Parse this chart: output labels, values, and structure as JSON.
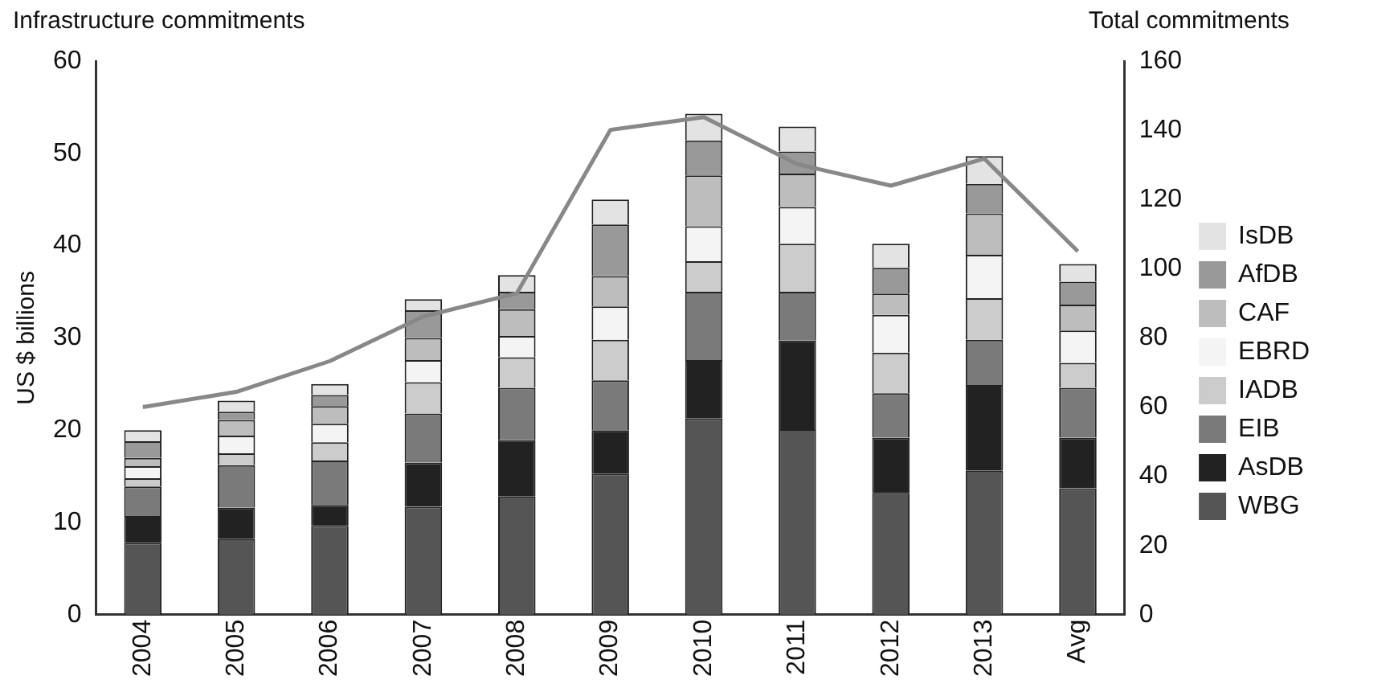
{
  "chart_data": {
    "type": "bar",
    "title": "Infrastructure commitments",
    "ylabel": "US $ billions",
    "y2label": "Total commitments",
    "categories": [
      "2004",
      "2005",
      "2006",
      "2007",
      "2008",
      "2009",
      "2010",
      "2011",
      "2012",
      "2013",
      "Avg"
    ],
    "stacked": true,
    "series": [
      {
        "name": "WBG",
        "color": "#555555",
        "values": [
          7.8,
          8.2,
          9.6,
          11.7,
          12.8,
          15.3,
          21.3,
          20.1,
          13.2,
          15.6,
          13.7
        ]
      },
      {
        "name": "AsDB",
        "color": "#222222",
        "values": [
          2.9,
          3.4,
          2.3,
          4.8,
          6.1,
          4.7,
          6.3,
          9.6,
          6.0,
          9.3,
          5.5
        ]
      },
      {
        "name": "EIB",
        "color": "#7a7a7a",
        "values": [
          3.2,
          4.6,
          4.8,
          5.3,
          5.7,
          5.4,
          7.4,
          5.3,
          4.8,
          4.9,
          5.4
        ]
      },
      {
        "name": "IADB",
        "color": "#cccccc",
        "values": [
          0.9,
          1.3,
          2.0,
          3.4,
          3.3,
          4.4,
          3.3,
          5.2,
          4.4,
          4.5,
          2.7
        ]
      },
      {
        "name": "EBRD",
        "color": "#f4f4f4",
        "values": [
          1.3,
          1.9,
          2.0,
          2.4,
          2.3,
          3.6,
          3.8,
          4.0,
          4.1,
          4.7,
          3.5
        ]
      },
      {
        "name": "CAF",
        "color": "#bdbdbd",
        "values": [
          0.9,
          1.7,
          1.9,
          2.4,
          2.9,
          3.3,
          5.5,
          3.6,
          2.3,
          4.5,
          2.8
        ]
      },
      {
        "name": "AfDB",
        "color": "#999999",
        "values": [
          1.8,
          0.9,
          1.2,
          3.0,
          1.9,
          5.6,
          3.8,
          2.4,
          2.8,
          3.2,
          2.5
        ]
      },
      {
        "name": "IsDB",
        "color": "#e3e3e3",
        "values": [
          1.2,
          1.2,
          1.2,
          1.2,
          1.8,
          2.7,
          2.9,
          2.7,
          2.6,
          3.0,
          1.9
        ]
      },
      {
        "type": "line",
        "axis": "y2",
        "color": "#888888",
        "values": [
          60.0,
          64.4,
          73.3,
          86.2,
          92.9,
          140.1,
          143.8,
          130.2,
          124.0,
          131.8,
          105.0
        ]
      }
    ],
    "ylim": [
      0,
      60
    ],
    "yticks": [
      0,
      10,
      20,
      30,
      40,
      50,
      60
    ],
    "y2lim": [
      0,
      160
    ],
    "y2ticks": [
      0,
      20,
      40,
      60,
      80,
      100,
      120,
      140,
      160
    ],
    "grid": false,
    "legend": "right",
    "marker": "none"
  }
}
